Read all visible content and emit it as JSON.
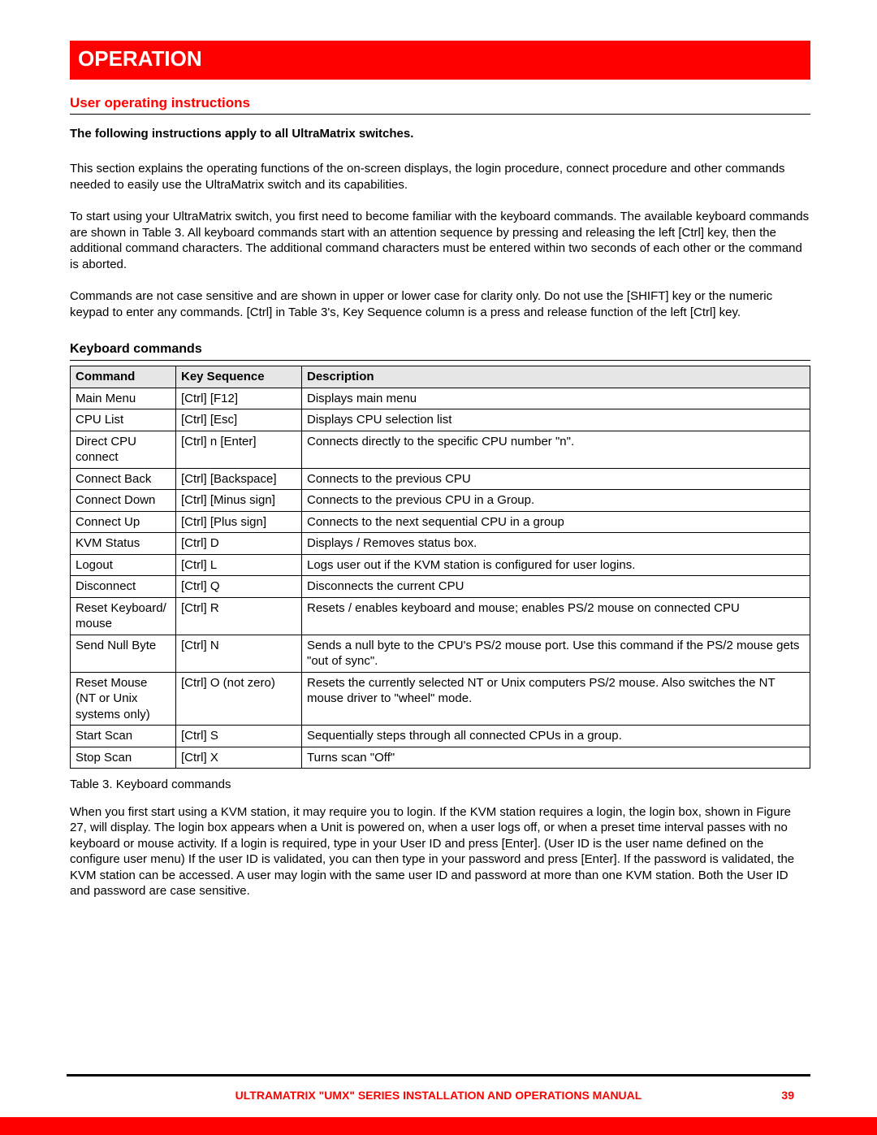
{
  "banner": {
    "title": "OPERATION"
  },
  "section": {
    "user_instructions": "User operating instructions",
    "applies": "The following instructions apply to all UltraMatrix switches.",
    "p1": "This section explains the operating functions of the on-screen displays, the login procedure, connect procedure and other commands needed to easily use the UltraMatrix switch and its capabilities.",
    "p2": "To start using your UltraMatrix switch, you first need to become familiar with the keyboard commands. The available keyboard commands are shown in Table 3.  All keyboard commands start with an attention sequence by pressing and releasing the left [Ctrl] key, then the additional command characters.  The additional command characters must be entered within two seconds of each other or the command is aborted.",
    "p3": "Commands are not case sensitive and are shown in upper or lower case for clarity only. Do not use the [SHIFT] key or the numeric keypad to enter any commands. [Ctrl]  in Table 3's, Key Sequence column is a press and release function of the left [Ctrl] key.",
    "keyboard_heading": "Keyboard commands"
  },
  "table": {
    "headers": {
      "c1": "Command",
      "c2": "Key Sequence",
      "c3": "Description"
    },
    "rows": [
      {
        "cmd": "Main Menu",
        "seq": "[Ctrl]  [F12]",
        "desc": "Displays main menu"
      },
      {
        "cmd": "CPU List",
        "seq": "[Ctrl]  [Esc]",
        "desc": "Displays CPU selection list"
      },
      {
        "cmd": "Direct CPU connect",
        "seq": "[Ctrl]  n  [Enter]",
        "desc": "Connects directly to the specific CPU number \"n\"."
      },
      {
        "cmd": "Connect Back",
        "seq": "[Ctrl]  [Backspace]",
        "desc": "Connects to the previous CPU"
      },
      {
        "cmd": "Connect Down",
        "seq": "[Ctrl]  [Minus sign]",
        "desc": "Connects to the previous CPU in a Group."
      },
      {
        "cmd": "Connect Up",
        "seq": "[Ctrl]  [Plus sign]",
        "desc": "Connects to the next sequential CPU in a group"
      },
      {
        "cmd": "KVM Status",
        "seq": "[Ctrl] D",
        "desc": "Displays / Removes status box."
      },
      {
        "cmd": "Logout",
        "seq": "[Ctrl] L",
        "desc": "Logs user out if the KVM station is configured for user logins."
      },
      {
        "cmd": "Disconnect",
        "seq": "[Ctrl] Q",
        "desc": "Disconnects the current CPU"
      },
      {
        "cmd": "Reset Keyboard/ mouse",
        "seq": "[Ctrl] R",
        "desc": "Resets / enables keyboard and mouse; enables PS/2 mouse on connected CPU"
      },
      {
        "cmd": "Send Null Byte",
        "seq": "[Ctrl] N",
        "desc": "Sends a null byte to the CPU's PS/2 mouse port.  Use this command if the PS/2 mouse gets \"out of sync\"."
      },
      {
        "cmd": "Reset Mouse (NT or Unix systems only)",
        "seq": "[Ctrl] O (not zero)",
        "desc": "Resets the currently selected NT or Unix computers PS/2 mouse.  Also switches the NT mouse driver to \"wheel\" mode."
      },
      {
        "cmd": "Start Scan",
        "seq": "[Ctrl] S",
        "desc": "Sequentially steps through all connected CPUs in a group."
      },
      {
        "cmd": "Stop Scan",
        "seq": "[Ctrl] X",
        "desc": "Turns scan \"Off\""
      }
    ],
    "caption": "Table 3. Keyboard commands"
  },
  "after_table": {
    "p1": "When you first start using a KVM station, it may require you to login.  If the KVM station requires a login, the login box, shown in Figure 27, will display. The login box appears when a Unit is powered on, when a user logs off, or when a preset time interval passes with no keyboard or mouse activity. If a login is required, type in your User ID and press [Enter]. (User ID is the user name defined on the configure user menu) If the user ID is validated, you can then type in your password and press [Enter].  If the password is validated, the KVM station can be accessed. A user may login with the same user ID and password at more than one KVM station. Both the User ID and password are case sensitive."
  },
  "footer": {
    "title": "ULTRAMATRIX \"UMX\" SERIES INSTALLATION AND OPERATIONS MANUAL",
    "page": "39"
  },
  "colors": {
    "red": "#ff0000",
    "header_bg": "#e6e6e6",
    "text": "#000000"
  }
}
